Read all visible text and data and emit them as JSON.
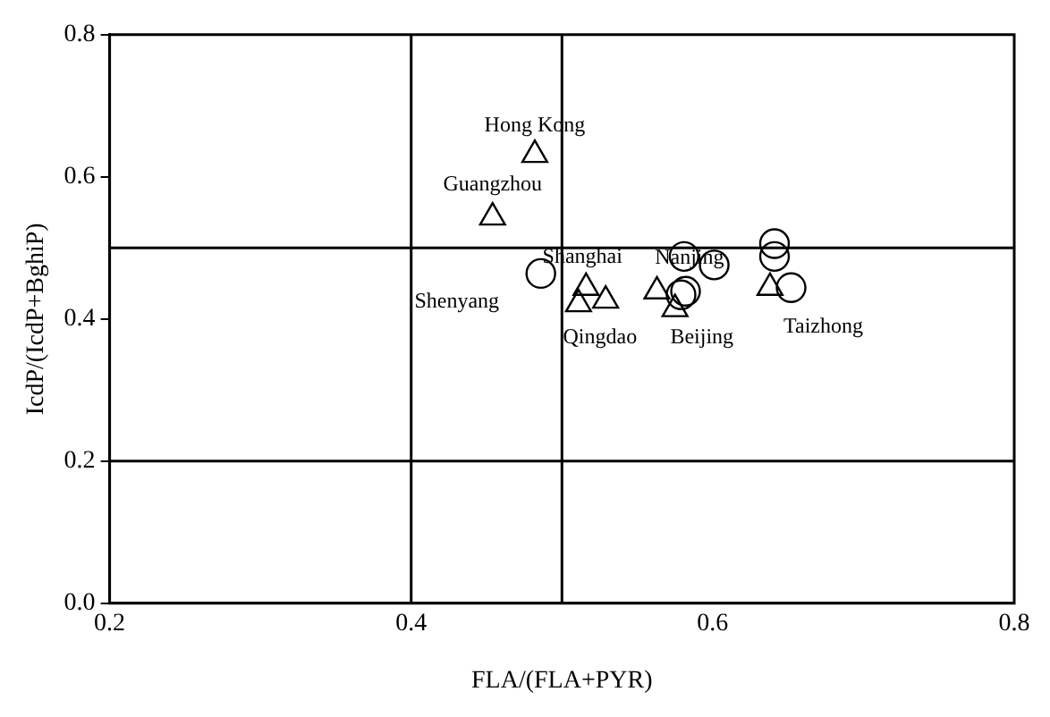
{
  "chart_data": {
    "type": "scatter",
    "xlabel": "FLA/(FLA+PYR)",
    "ylabel": "IcdP/(IcdP+BghiP)",
    "xlim": [
      0.2,
      0.8
    ],
    "ylim": [
      0,
      0.8
    ],
    "xticks": [
      0.2,
      0.4,
      0.6,
      0.8
    ],
    "yticks": [
      {
        "value": 0,
        "label": "0.0"
      },
      0.2,
      0.4,
      0.6,
      0.8
    ],
    "grid": false,
    "legend": false,
    "series": [
      {
        "color": "#000000",
        "marker": "triangle",
        "x": [
          0.482,
          0.454,
          0.516,
          0.529,
          0.511,
          0.563,
          0.575,
          0.638
        ],
        "values": [
          0.631,
          0.543,
          0.444,
          0.426,
          0.421,
          0.439,
          0.414,
          0.444
        ]
      },
      {
        "color": "#000000",
        "marker": "circle",
        "x": [
          0.486,
          0.581,
          0.601,
          0.582,
          0.579,
          0.641,
          0.641,
          0.652
        ],
        "values": [
          0.464,
          0.488,
          0.476,
          0.439,
          0.434,
          0.506,
          0.488,
          0.444
        ]
      }
    ],
    "ref_lines": [
      {
        "axis": "x",
        "value": 0.4
      },
      {
        "axis": "x",
        "value": 0.5
      },
      {
        "axis": "y",
        "value": 0.2
      },
      {
        "axis": "y",
        "value": 0.5
      }
    ],
    "annotations": [
      {
        "text": "Hong Kong",
        "x": 0.482,
        "y": 0.631
      },
      {
        "text": "Guangzhou",
        "x": 0.454,
        "y": 0.543
      },
      {
        "text": "Shanghai",
        "x": 0.516,
        "y": 0.444
      },
      {
        "text": "Nanjing",
        "x": 0.581,
        "y": 0.488
      },
      {
        "text": "Shenyang",
        "x": 0.486,
        "y": 0.464
      },
      {
        "text": "Qingdao",
        "x": 0.511,
        "y": 0.421
      },
      {
        "text": "Beijing",
        "x": 0.575,
        "y": 0.414
      },
      {
        "text": "Taizhong",
        "x": 0.652,
        "y": 0.444
      }
    ]
  }
}
